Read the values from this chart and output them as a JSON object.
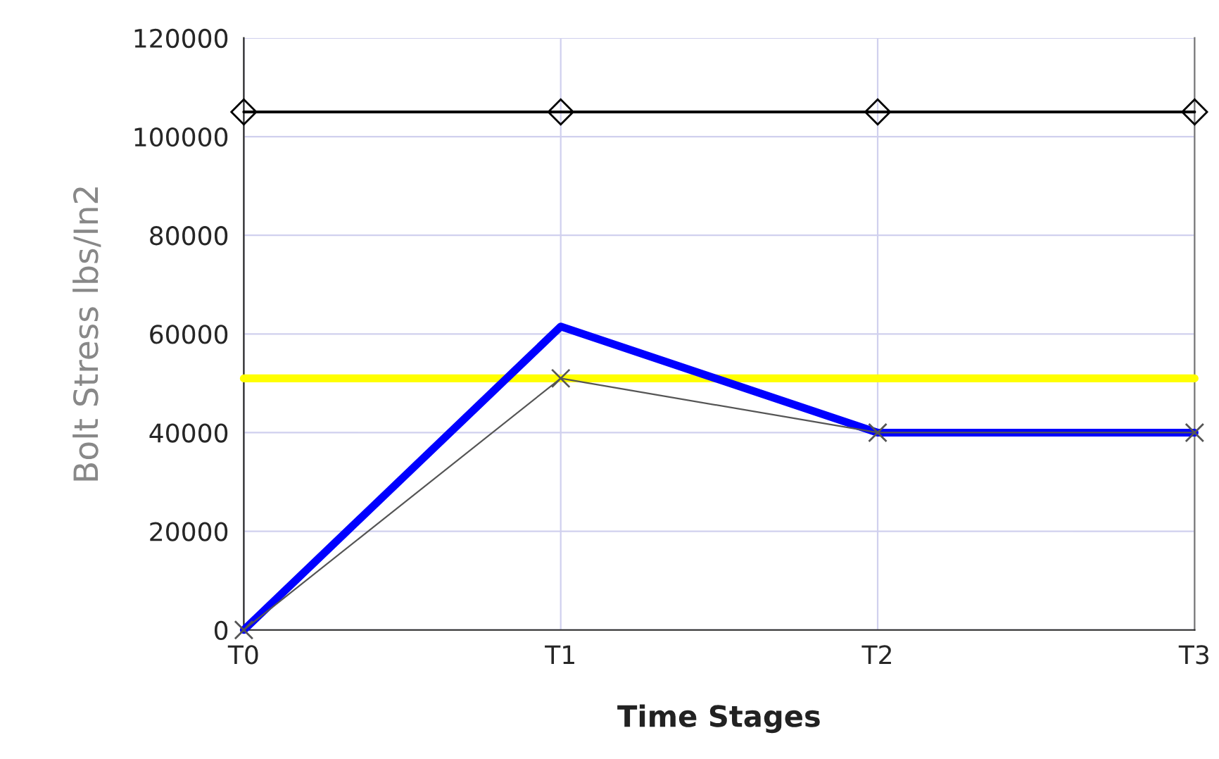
{
  "chart_data": {
    "type": "line",
    "xlabel": "Time Stages",
    "ylabel": "Bolt Stress lbs/In2",
    "categories": [
      "T0",
      "T1",
      "T2",
      "T3"
    ],
    "series": [
      {
        "color": "#000000",
        "values": [
          105000,
          105000,
          105000,
          105000
        ],
        "marker": "diamond"
      },
      {
        "color": "#ffff00",
        "values": [
          51000,
          51000,
          51000,
          51000
        ],
        "marker": "none"
      },
      {
        "color": "#0000ff",
        "values": [
          0,
          61500,
          40000,
          40000
        ],
        "marker": "none"
      },
      {
        "color": "#555555",
        "values": [
          0,
          51000,
          40000,
          40000
        ],
        "marker": "cross"
      }
    ],
    "ylim": [
      0,
      120000
    ],
    "yticks": [
      0,
      20000,
      40000,
      60000,
      80000,
      100000,
      120000
    ],
    "grid": true,
    "legend": false
  }
}
